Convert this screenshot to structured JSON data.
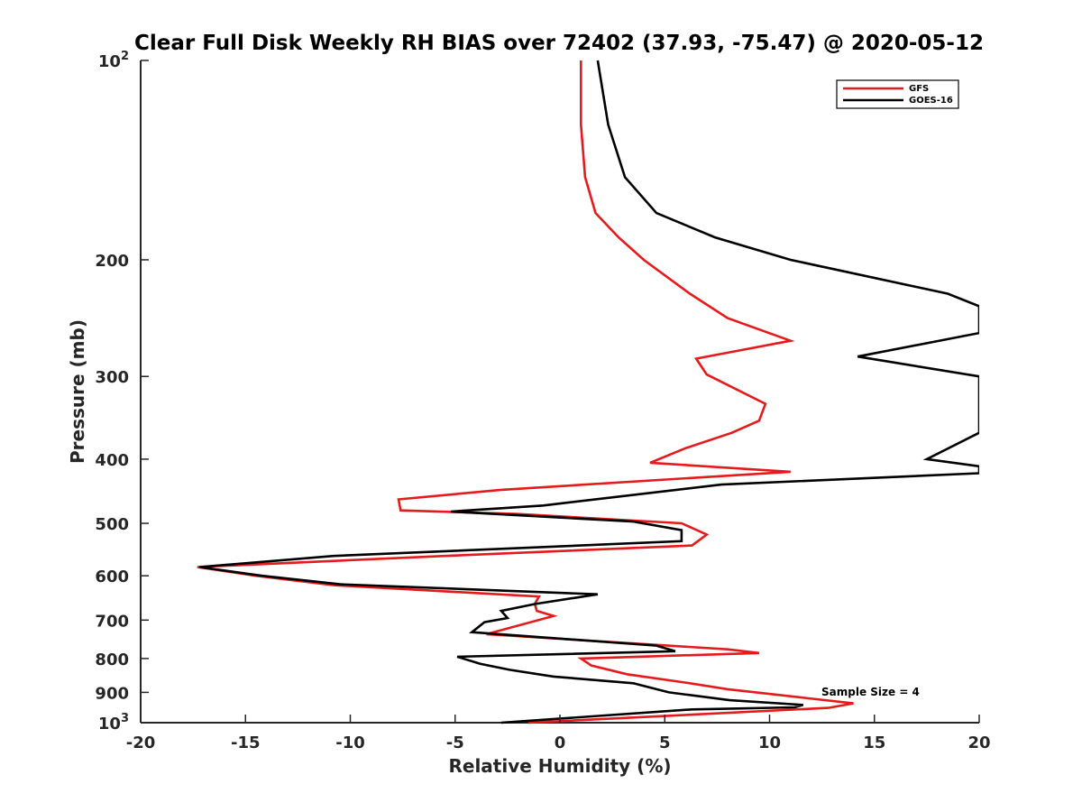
{
  "chart_data": {
    "type": "line",
    "title": "Clear Full Disk Weekly RH BIAS over 72402 (37.93, -75.47) @ 2020-05-12",
    "xlabel": "Relative Humidity (%)",
    "ylabel": "Pressure (mb)",
    "xlim": [
      -20,
      20
    ],
    "ylim": [
      100,
      1000
    ],
    "yscale": "log",
    "y_reversed": true,
    "grid": false,
    "legend_position": "top-right",
    "annotation": "Sample Size = 4",
    "x_ticks": [
      "-20",
      "-15",
      "-10",
      "-5",
      "0",
      "5",
      "10",
      "15",
      "20"
    ],
    "y_ticks": [
      {
        "value": 100,
        "label": "10",
        "sup": "2"
      },
      {
        "value": 200,
        "label": "200",
        "sup": ""
      },
      {
        "value": 300,
        "label": "300",
        "sup": ""
      },
      {
        "value": 400,
        "label": "400",
        "sup": ""
      },
      {
        "value": 500,
        "label": "500",
        "sup": ""
      },
      {
        "value": 600,
        "label": "600",
        "sup": ""
      },
      {
        "value": 700,
        "label": "700",
        "sup": ""
      },
      {
        "value": 800,
        "label": "800",
        "sup": ""
      },
      {
        "value": 900,
        "label": "900",
        "sup": ""
      },
      {
        "value": 1000,
        "label": "10",
        "sup": "3"
      }
    ],
    "series": [
      {
        "name": "GFS",
        "color": "#e41a1c",
        "points": [
          [
            1.0,
            100
          ],
          [
            1.0,
            125
          ],
          [
            1.2,
            150
          ],
          [
            1.7,
            170
          ],
          [
            2.8,
            185
          ],
          [
            4.0,
            200
          ],
          [
            6.2,
            225
          ],
          [
            8.0,
            245
          ],
          [
            11.0,
            265
          ],
          [
            6.5,
            282
          ],
          [
            7.0,
            298
          ],
          [
            9.8,
            330
          ],
          [
            9.5,
            350
          ],
          [
            8.2,
            365
          ],
          [
            6.0,
            385
          ],
          [
            4.3,
            405
          ],
          [
            11.0,
            418
          ],
          [
            -2.8,
            445
          ],
          [
            -7.7,
            460
          ],
          [
            -7.6,
            478
          ],
          [
            -2.0,
            484
          ],
          [
            5.8,
            500
          ],
          [
            7.0,
            520
          ],
          [
            6.3,
            540
          ],
          [
            -5.5,
            560
          ],
          [
            -17.3,
            582
          ],
          [
            -14.5,
            600
          ],
          [
            -10.8,
            620
          ],
          [
            -1.0,
            645
          ],
          [
            -1.2,
            662
          ],
          [
            -1.1,
            678
          ],
          [
            -0.3,
            690
          ],
          [
            -3.5,
            735
          ],
          [
            8.0,
            775
          ],
          [
            9.5,
            785
          ],
          [
            1.0,
            800
          ],
          [
            1.5,
            820
          ],
          [
            3.2,
            845
          ],
          [
            6.0,
            870
          ],
          [
            8.0,
            890
          ],
          [
            14.0,
            935
          ],
          [
            12.8,
            950
          ],
          [
            -1.5,
            1000
          ]
        ]
      },
      {
        "name": "GOES-16",
        "color": "#000000",
        "points": [
          [
            1.8,
            100
          ],
          [
            2.3,
            125
          ],
          [
            3.1,
            150
          ],
          [
            4.6,
            170
          ],
          [
            7.4,
            185
          ],
          [
            11.0,
            200
          ],
          [
            18.5,
            225
          ],
          [
            20.0,
            235
          ],
          [
            20.0,
            258
          ],
          [
            14.2,
            280
          ],
          [
            20.0,
            300
          ],
          [
            20.0,
            365
          ],
          [
            17.5,
            400
          ],
          [
            20.0,
            410
          ],
          [
            20.0,
            420
          ],
          [
            7.7,
            437
          ],
          [
            -0.8,
            470
          ],
          [
            -5.2,
            480
          ],
          [
            3.5,
            497
          ],
          [
            5.8,
            512
          ],
          [
            5.8,
            532
          ],
          [
            -10.8,
            560
          ],
          [
            -17.2,
            582
          ],
          [
            -14.2,
            600
          ],
          [
            -10.5,
            618
          ],
          [
            1.8,
            640
          ],
          [
            -1.2,
            662
          ],
          [
            -2.8,
            678
          ],
          [
            -2.5,
            695
          ],
          [
            -3.6,
            705
          ],
          [
            -4.2,
            730
          ],
          [
            4.6,
            765
          ],
          [
            5.5,
            780
          ],
          [
            -4.9,
            795
          ],
          [
            -3.8,
            815
          ],
          [
            -2.4,
            832
          ],
          [
            -0.3,
            852
          ],
          [
            3.5,
            872
          ],
          [
            5.2,
            900
          ],
          [
            8.1,
            925
          ],
          [
            11.6,
            940
          ],
          [
            11.2,
            948
          ],
          [
            6.3,
            955
          ],
          [
            -2.8,
            1000
          ]
        ]
      }
    ]
  }
}
